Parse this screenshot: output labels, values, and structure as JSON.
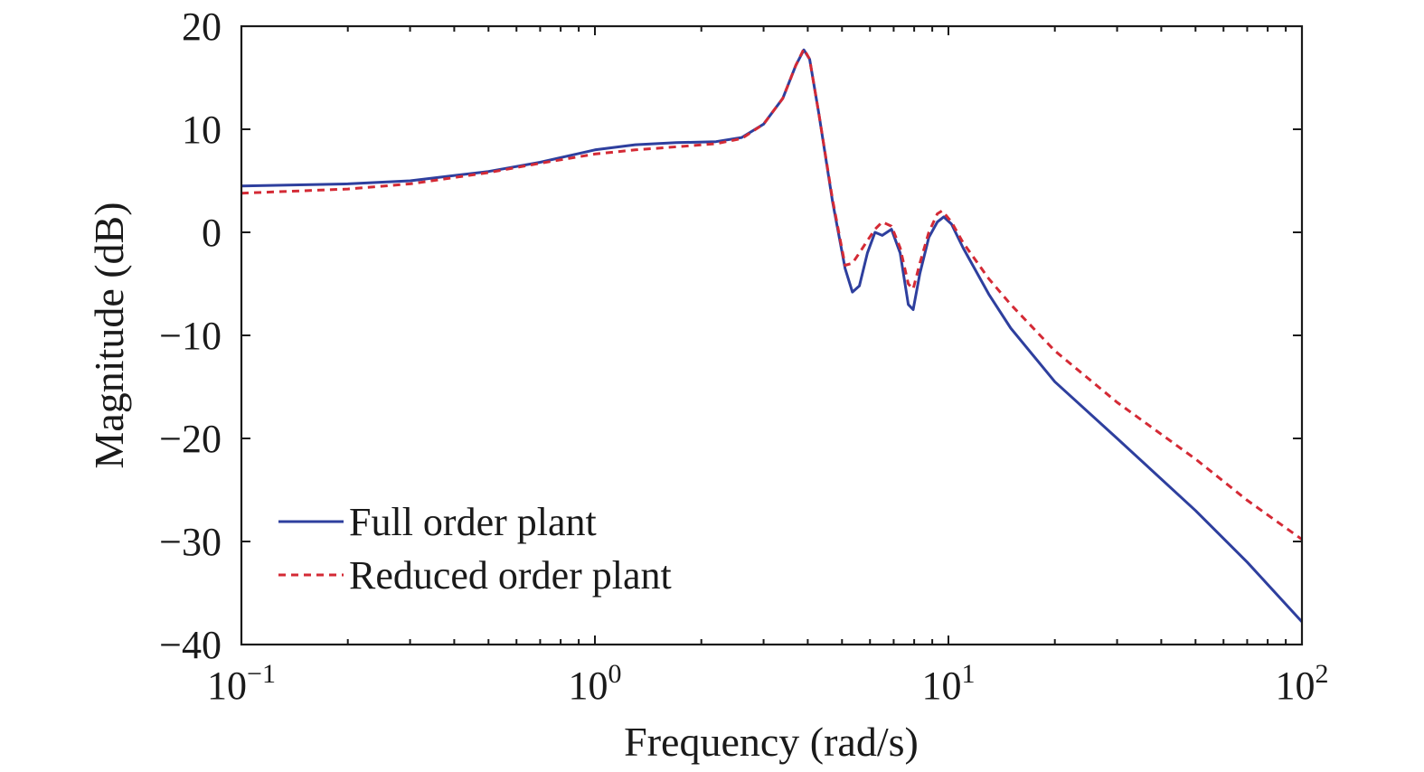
{
  "chart_data": {
    "type": "line",
    "title": "",
    "xlabel": "Frequency (rad/s)",
    "ylabel": "Magnitude (dB)",
    "x_scale": "log",
    "xlim": [
      0.1,
      100
    ],
    "ylim": [
      -40,
      20
    ],
    "grid": false,
    "legend_position": "bottom-left",
    "x_ticks": [
      {
        "value": 0.1,
        "base": "10",
        "exp": "−1"
      },
      {
        "value": 1,
        "base": "10",
        "exp": "0"
      },
      {
        "value": 10,
        "base": "10",
        "exp": "1"
      },
      {
        "value": 100,
        "base": "10",
        "exp": "2"
      }
    ],
    "y_ticks": [
      {
        "value": 20,
        "label": "20"
      },
      {
        "value": 10,
        "label": "10"
      },
      {
        "value": 0,
        "label": "0"
      },
      {
        "value": -10,
        "label": "−10"
      },
      {
        "value": -20,
        "label": "−20"
      },
      {
        "value": -30,
        "label": "−30"
      },
      {
        "value": -40,
        "label": "−40"
      }
    ],
    "series": [
      {
        "name": "Full order plant",
        "color": "#2e3f9e",
        "dash": "solid",
        "points": [
          [
            0.1,
            4.5
          ],
          [
            0.2,
            4.7
          ],
          [
            0.3,
            5.0
          ],
          [
            0.5,
            5.9
          ],
          [
            0.7,
            6.8
          ],
          [
            1.0,
            8.0
          ],
          [
            1.3,
            8.5
          ],
          [
            1.7,
            8.7
          ],
          [
            2.2,
            8.8
          ],
          [
            2.6,
            9.2
          ],
          [
            3.0,
            10.5
          ],
          [
            3.4,
            13.0
          ],
          [
            3.7,
            16.2
          ],
          [
            3.9,
            17.7
          ],
          [
            4.05,
            16.8
          ],
          [
            4.3,
            11.5
          ],
          [
            4.7,
            3.0
          ],
          [
            5.1,
            -3.5
          ],
          [
            5.35,
            -5.8
          ],
          [
            5.6,
            -5.2
          ],
          [
            5.9,
            -2.0
          ],
          [
            6.2,
            0.0
          ],
          [
            6.5,
            -0.3
          ],
          [
            6.9,
            0.3
          ],
          [
            7.3,
            -2.0
          ],
          [
            7.7,
            -7.0
          ],
          [
            7.95,
            -7.5
          ],
          [
            8.3,
            -4.0
          ],
          [
            8.8,
            -0.5
          ],
          [
            9.3,
            1.0
          ],
          [
            9.7,
            1.5
          ],
          [
            10.2,
            0.8
          ],
          [
            11.0,
            -1.5
          ],
          [
            13.0,
            -6.0
          ],
          [
            15.0,
            -9.3
          ],
          [
            20.0,
            -14.5
          ],
          [
            30.0,
            -20.0
          ],
          [
            50.0,
            -27.0
          ],
          [
            70.0,
            -32.0
          ],
          [
            100.0,
            -37.8
          ]
        ]
      },
      {
        "name": "Reduced order plant",
        "color": "#d42a35",
        "dash": "dashed",
        "points": [
          [
            0.1,
            3.8
          ],
          [
            0.2,
            4.2
          ],
          [
            0.3,
            4.7
          ],
          [
            0.5,
            5.8
          ],
          [
            0.7,
            6.7
          ],
          [
            1.0,
            7.6
          ],
          [
            1.3,
            8.0
          ],
          [
            1.7,
            8.3
          ],
          [
            2.2,
            8.6
          ],
          [
            2.6,
            9.1
          ],
          [
            3.0,
            10.5
          ],
          [
            3.4,
            13.0
          ],
          [
            3.7,
            16.2
          ],
          [
            3.9,
            17.8
          ],
          [
            4.05,
            16.8
          ],
          [
            4.3,
            11.5
          ],
          [
            4.7,
            3.2
          ],
          [
            5.1,
            -3.2
          ],
          [
            5.35,
            -3.0
          ],
          [
            5.6,
            -2.0
          ],
          [
            5.9,
            -0.8
          ],
          [
            6.2,
            0.3
          ],
          [
            6.5,
            1.0
          ],
          [
            6.9,
            0.6
          ],
          [
            7.3,
            -1.5
          ],
          [
            7.7,
            -5.0
          ],
          [
            7.95,
            -5.5
          ],
          [
            8.3,
            -3.0
          ],
          [
            8.8,
            0.0
          ],
          [
            9.3,
            1.8
          ],
          [
            9.6,
            2.1
          ],
          [
            10.2,
            1.0
          ],
          [
            11.0,
            -1.0
          ],
          [
            13.0,
            -4.5
          ],
          [
            15.0,
            -7.0
          ],
          [
            20.0,
            -11.5
          ],
          [
            30.0,
            -16.5
          ],
          [
            50.0,
            -22.0
          ],
          [
            70.0,
            -26.0
          ],
          [
            100.0,
            -29.8
          ]
        ]
      }
    ]
  }
}
